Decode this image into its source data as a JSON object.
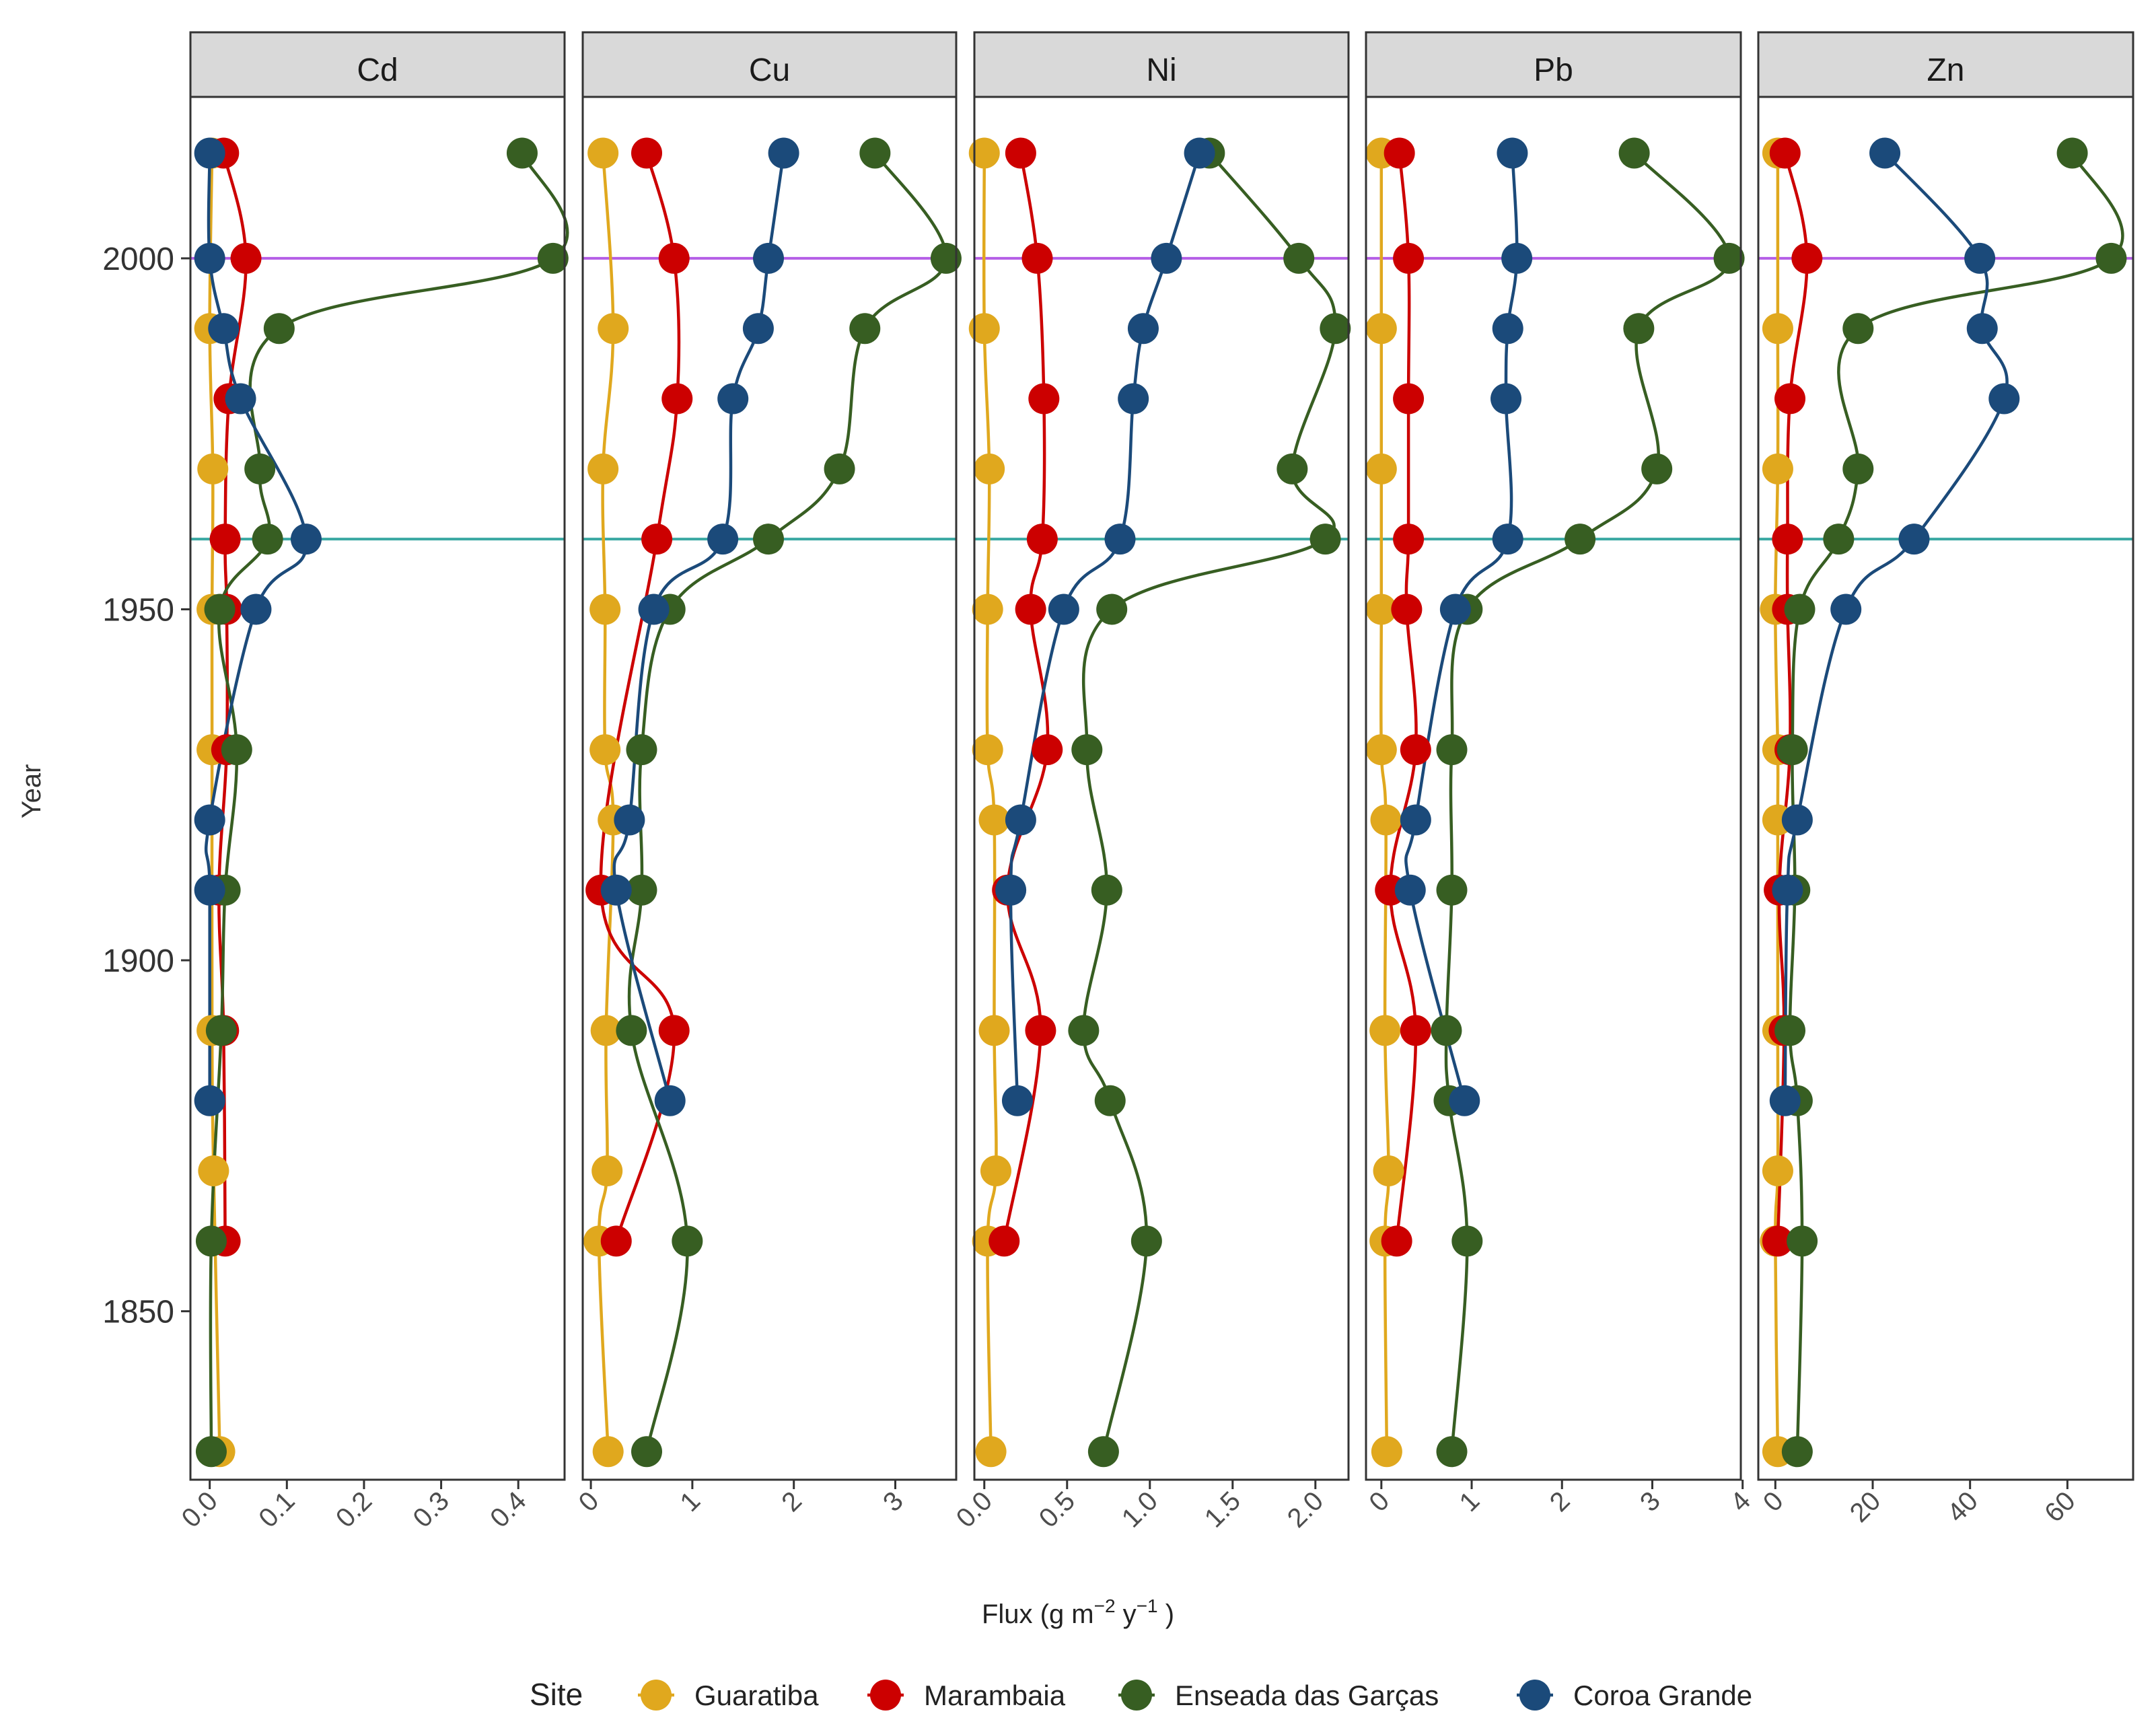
{
  "chart_data": {
    "type": "line",
    "title": "",
    "xlabel": "Flux (g m−2 y−1)",
    "xlabel_parts": {
      "pre": "Flux (g m",
      "exp1": "−2",
      "mid": " y",
      "exp2": "−1",
      "post": " )"
    },
    "ylabel": "Year",
    "ylim": [
      1826,
      2023
    ],
    "yticks": [
      1850,
      1900,
      1950,
      2000
    ],
    "reference_lines": [
      {
        "year": 2000,
        "color": "#b45ee6"
      },
      {
        "year": 1960,
        "color": "#3aa8a2"
      }
    ],
    "legend": {
      "title": "Site",
      "position": "bottom",
      "entries": [
        {
          "name": "Guaratiba",
          "color": "#e0a81e"
        },
        {
          "name": "Marambaia",
          "color": "#cc0000"
        },
        {
          "name": "Enseada das Garças",
          "color": "#375e22"
        },
        {
          "name": "Coroa Grande",
          "color": "#1b4a7a"
        }
      ]
    },
    "panels": [
      {
        "metal": "Cd",
        "xlim": [
          -0.025,
          0.46
        ],
        "xticks": [
          0,
          0.1,
          0.2,
          0.3,
          0.4
        ],
        "xtick_labels": [
          "0.0",
          "0.1",
          "0.2",
          "0.3",
          "0.4"
        ],
        "series": [
          {
            "name": "Guaratiba",
            "points": [
              [
                2015,
                0.003
              ],
              [
                1990,
                0.0
              ],
              [
                1970,
                0.004
              ],
              [
                1950,
                0.003
              ],
              [
                1930,
                0.003
              ],
              [
                1890,
                0.003
              ],
              [
                1870,
                0.005
              ],
              [
                1830,
                0.013
              ]
            ]
          },
          {
            "name": "Marambaia",
            "points": [
              [
                2015,
                0.018
              ],
              [
                2000,
                0.047
              ],
              [
                1980,
                0.025
              ],
              [
                1960,
                0.02
              ],
              [
                1950,
                0.022
              ],
              [
                1930,
                0.022
              ],
              [
                1910,
                0.012
              ],
              [
                1890,
                0.018
              ],
              [
                1860,
                0.02
              ]
            ]
          },
          {
            "name": "Enseada das Garças",
            "points": [
              [
                2015,
                0.405
              ],
              [
                2000,
                0.445
              ],
              [
                1990,
                0.09
              ],
              [
                1970,
                0.065
              ],
              [
                1960,
                0.075
              ],
              [
                1950,
                0.013
              ],
              [
                1930,
                0.035
              ],
              [
                1910,
                0.02
              ],
              [
                1890,
                0.015
              ],
              [
                1860,
                0.002
              ],
              [
                1830,
                0.002
              ]
            ]
          },
          {
            "name": "Coroa Grande",
            "points": [
              [
                2015,
                0.0
              ],
              [
                2000,
                0.0
              ],
              [
                1990,
                0.018
              ],
              [
                1980,
                0.04
              ],
              [
                1960,
                0.125
              ],
              [
                1950,
                0.06
              ],
              [
                1920,
                0.0
              ],
              [
                1910,
                0.0
              ],
              [
                1880,
                0.0
              ]
            ]
          }
        ]
      },
      {
        "metal": "Cu",
        "xlim": [
          -0.08,
          3.6
        ],
        "xticks": [
          0,
          1,
          2,
          3
        ],
        "xtick_labels": [
          "0",
          "1",
          "2",
          "3"
        ],
        "series": [
          {
            "name": "Guaratiba",
            "points": [
              [
                2015,
                0.12
              ],
              [
                1990,
                0.22
              ],
              [
                1970,
                0.12
              ],
              [
                1950,
                0.14
              ],
              [
                1930,
                0.14
              ],
              [
                1920,
                0.22
              ],
              [
                1890,
                0.15
              ],
              [
                1870,
                0.16
              ],
              [
                1860,
                0.08
              ],
              [
                1830,
                0.17
              ]
            ]
          },
          {
            "name": "Marambaia",
            "points": [
              [
                2015,
                0.55
              ],
              [
                2000,
                0.82
              ],
              [
                1980,
                0.85
              ],
              [
                1960,
                0.65
              ],
              [
                1910,
                0.1
              ],
              [
                1890,
                0.82
              ],
              [
                1860,
                0.25
              ]
            ]
          },
          {
            "name": "Enseada das Garças",
            "points": [
              [
                2015,
                2.8
              ],
              [
                2000,
                3.5
              ],
              [
                1990,
                2.7
              ],
              [
                1970,
                2.45
              ],
              [
                1960,
                1.75
              ],
              [
                1950,
                0.78
              ],
              [
                1930,
                0.5
              ],
              [
                1910,
                0.5
              ],
              [
                1890,
                0.4
              ],
              [
                1860,
                0.95
              ],
              [
                1830,
                0.55
              ]
            ]
          },
          {
            "name": "Coroa Grande",
            "points": [
              [
                2015,
                1.9
              ],
              [
                2000,
                1.75
              ],
              [
                1990,
                1.65
              ],
              [
                1980,
                1.4
              ],
              [
                1960,
                1.3
              ],
              [
                1950,
                0.62
              ],
              [
                1920,
                0.38
              ],
              [
                1910,
                0.25
              ],
              [
                1880,
                0.78
              ]
            ]
          }
        ]
      },
      {
        "metal": "Ni",
        "xlim": [
          -0.06,
          2.2
        ],
        "xticks": [
          0,
          0.5,
          1.0,
          1.5,
          2.0
        ],
        "xtick_labels": [
          "0.0",
          "0.5",
          "1.0",
          "1.5",
          "2.0"
        ],
        "series": [
          {
            "name": "Guaratiba",
            "points": [
              [
                2015,
                0.0
              ],
              [
                1990,
                0.0
              ],
              [
                1970,
                0.03
              ],
              [
                1950,
                0.02
              ],
              [
                1930,
                0.02
              ],
              [
                1920,
                0.06
              ],
              [
                1890,
                0.06
              ],
              [
                1870,
                0.07
              ],
              [
                1860,
                0.02
              ],
              [
                1830,
                0.04
              ]
            ]
          },
          {
            "name": "Marambaia",
            "points": [
              [
                2015,
                0.22
              ],
              [
                2000,
                0.32
              ],
              [
                1980,
                0.36
              ],
              [
                1960,
                0.35
              ],
              [
                1950,
                0.28
              ],
              [
                1930,
                0.38
              ],
              [
                1910,
                0.14
              ],
              [
                1890,
                0.34
              ],
              [
                1860,
                0.12
              ]
            ]
          },
          {
            "name": "Enseada das Garças",
            "points": [
              [
                2015,
                1.36
              ],
              [
                2000,
                1.9
              ],
              [
                1990,
                2.12
              ],
              [
                1970,
                1.86
              ],
              [
                1960,
                2.06
              ],
              [
                1950,
                0.77
              ],
              [
                1930,
                0.62
              ],
              [
                1910,
                0.74
              ],
              [
                1890,
                0.6
              ],
              [
                1880,
                0.76
              ],
              [
                1860,
                0.98
              ],
              [
                1830,
                0.72
              ]
            ]
          },
          {
            "name": "Coroa Grande",
            "points": [
              [
                2015,
                1.3
              ],
              [
                2000,
                1.1
              ],
              [
                1990,
                0.96
              ],
              [
                1980,
                0.9
              ],
              [
                1960,
                0.82
              ],
              [
                1950,
                0.48
              ],
              [
                1920,
                0.22
              ],
              [
                1910,
                0.16
              ],
              [
                1880,
                0.2
              ]
            ]
          }
        ]
      },
      {
        "metal": "Pb",
        "xlim": [
          -0.17,
          3.98
        ],
        "xticks": [
          0,
          1,
          2,
          3,
          4
        ],
        "xtick_labels": [
          "0",
          "1",
          "2",
          "3",
          "4"
        ],
        "series": [
          {
            "name": "Guaratiba",
            "points": [
              [
                2015,
                0.0
              ],
              [
                1990,
                0.0
              ],
              [
                1970,
                0.0
              ],
              [
                1950,
                0.0
              ],
              [
                1930,
                0.0
              ],
              [
                1920,
                0.05
              ],
              [
                1890,
                0.04
              ],
              [
                1870,
                0.08
              ],
              [
                1860,
                0.04
              ],
              [
                1830,
                0.06
              ]
            ]
          },
          {
            "name": "Marambaia",
            "points": [
              [
                2015,
                0.2
              ],
              [
                2000,
                0.3
              ],
              [
                1980,
                0.3
              ],
              [
                1960,
                0.3
              ],
              [
                1950,
                0.28
              ],
              [
                1930,
                0.38
              ],
              [
                1910,
                0.1
              ],
              [
                1890,
                0.38
              ],
              [
                1860,
                0.17
              ]
            ]
          },
          {
            "name": "Enseada das Garças",
            "points": [
              [
                2015,
                2.8
              ],
              [
                2000,
                3.85
              ],
              [
                1990,
                2.85
              ],
              [
                1970,
                3.05
              ],
              [
                1960,
                2.2
              ],
              [
                1950,
                0.95
              ],
              [
                1930,
                0.78
              ],
              [
                1910,
                0.78
              ],
              [
                1890,
                0.72
              ],
              [
                1880,
                0.75
              ],
              [
                1860,
                0.95
              ],
              [
                1830,
                0.78
              ]
            ]
          },
          {
            "name": "Coroa Grande",
            "points": [
              [
                2015,
                1.45
              ],
              [
                2000,
                1.5
              ],
              [
                1990,
                1.4
              ],
              [
                1980,
                1.38
              ],
              [
                1960,
                1.4
              ],
              [
                1950,
                0.82
              ],
              [
                1920,
                0.38
              ],
              [
                1910,
                0.32
              ],
              [
                1880,
                0.92
              ]
            ]
          }
        ]
      },
      {
        "metal": "Zn",
        "xlim": [
          -3.5,
          73.5
        ],
        "xticks": [
          0,
          20,
          40,
          60
        ],
        "xtick_labels": [
          "0",
          "20",
          "40",
          "60"
        ],
        "series": [
          {
            "name": "Guaratiba",
            "points": [
              [
                2015,
                0.5
              ],
              [
                1990,
                0.5
              ],
              [
                1970,
                0.5
              ],
              [
                1950,
                0.0
              ],
              [
                1930,
                0.5
              ],
              [
                1920,
                0.5
              ],
              [
                1890,
                0.5
              ],
              [
                1870,
                0.5
              ],
              [
                1860,
                0.0
              ],
              [
                1830,
                0.5
              ]
            ]
          },
          {
            "name": "Marambaia",
            "points": [
              [
                2015,
                2.0
              ],
              [
                2000,
                6.5
              ],
              [
                1980,
                3.0
              ],
              [
                1960,
                2.5
              ],
              [
                1950,
                2.5
              ],
              [
                1930,
                3.0
              ],
              [
                1910,
                0.8
              ],
              [
                1890,
                1.8
              ],
              [
                1860,
                0.5
              ]
            ]
          },
          {
            "name": "Enseada das Garças",
            "points": [
              [
                2015,
                61
              ],
              [
                2000,
                69
              ],
              [
                1990,
                17
              ],
              [
                1970,
                17
              ],
              [
                1960,
                13
              ],
              [
                1950,
                5
              ],
              [
                1930,
                3.5
              ],
              [
                1910,
                4
              ],
              [
                1890,
                3
              ],
              [
                1880,
                4.5
              ],
              [
                1860,
                5.5
              ],
              [
                1830,
                4.5
              ]
            ]
          },
          {
            "name": "Coroa Grande",
            "points": [
              [
                2015,
                22.5
              ],
              [
                2000,
                42
              ],
              [
                1990,
                42.5
              ],
              [
                1980,
                47
              ],
              [
                1960,
                28.5
              ],
              [
                1950,
                14.5
              ],
              [
                1920,
                4.5
              ],
              [
                1910,
                2.5
              ],
              [
                1880,
                2.0
              ]
            ]
          }
        ]
      }
    ]
  }
}
